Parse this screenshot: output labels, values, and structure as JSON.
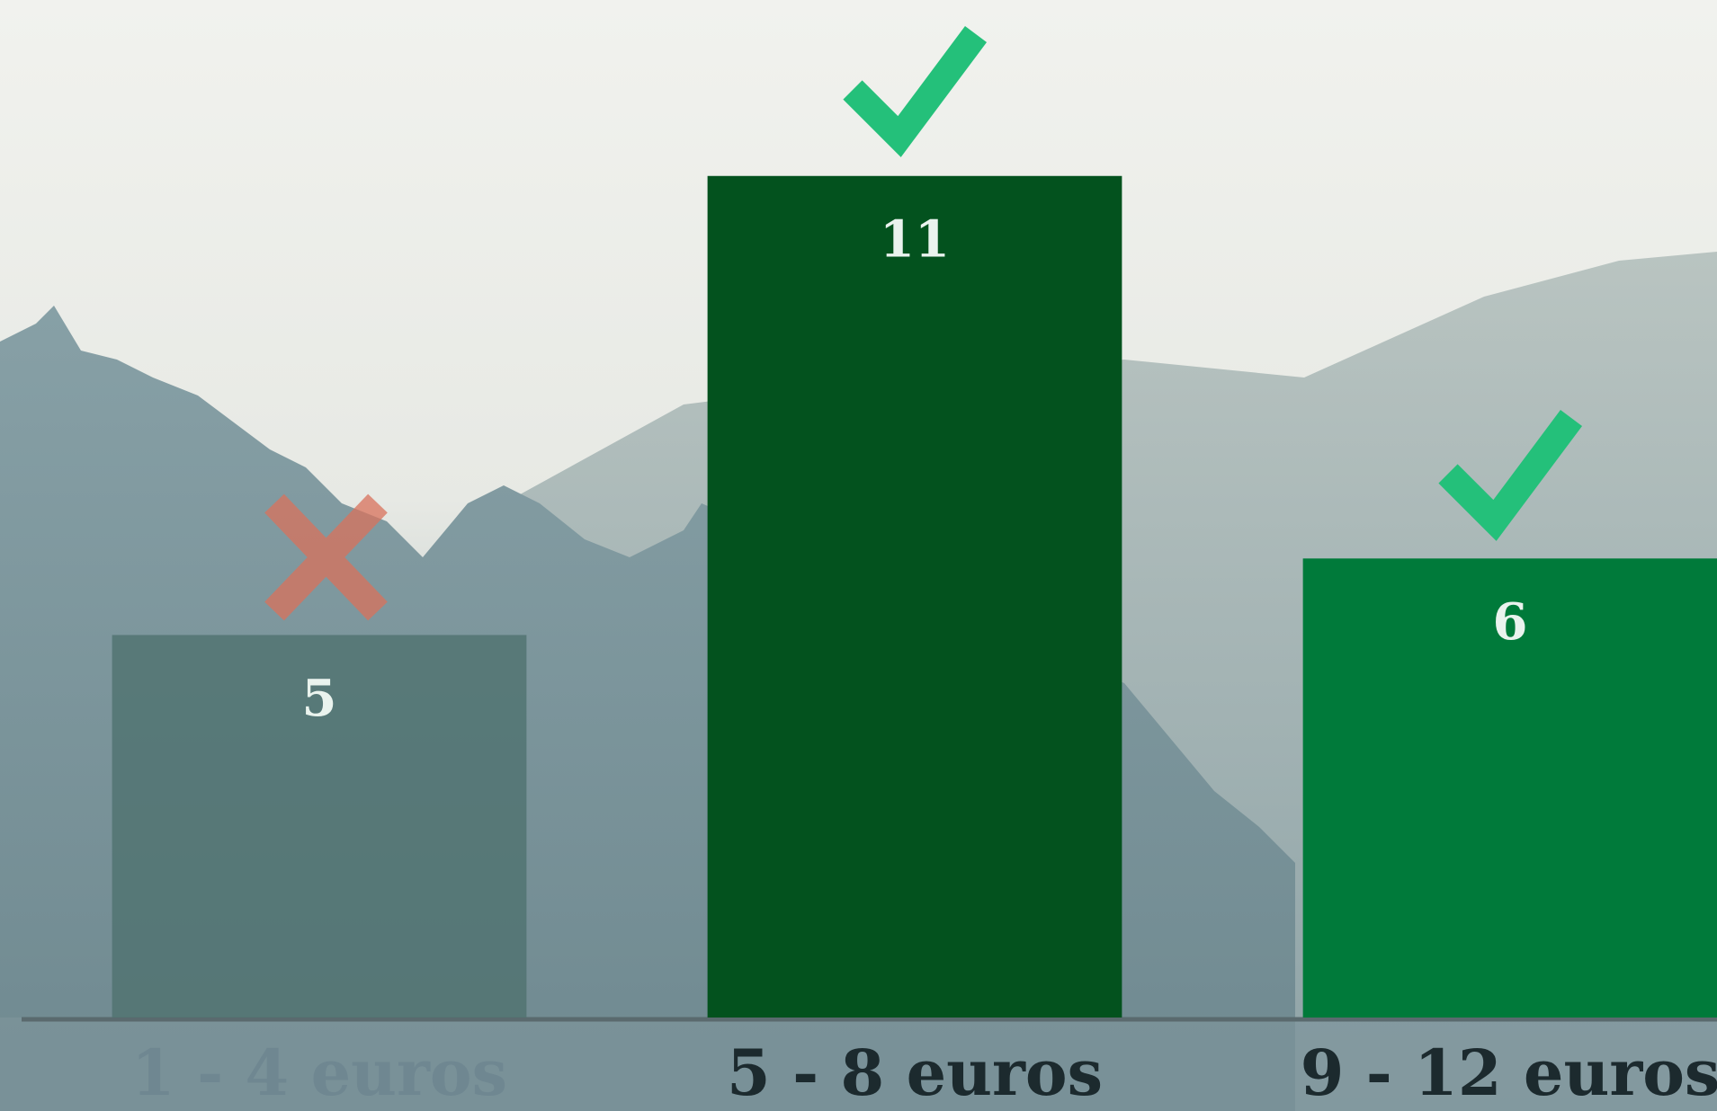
{
  "chart_data": {
    "type": "bar",
    "categories": [
      "1 - 4 euros",
      "5 - 8 euros",
      "9 - 12 euros"
    ],
    "values": [
      5,
      11,
      6
    ],
    "colors": [
      "#4f726f",
      "#03521e",
      "#007a3a"
    ],
    "ylim": [
      0,
      13.3
    ]
  }
}
